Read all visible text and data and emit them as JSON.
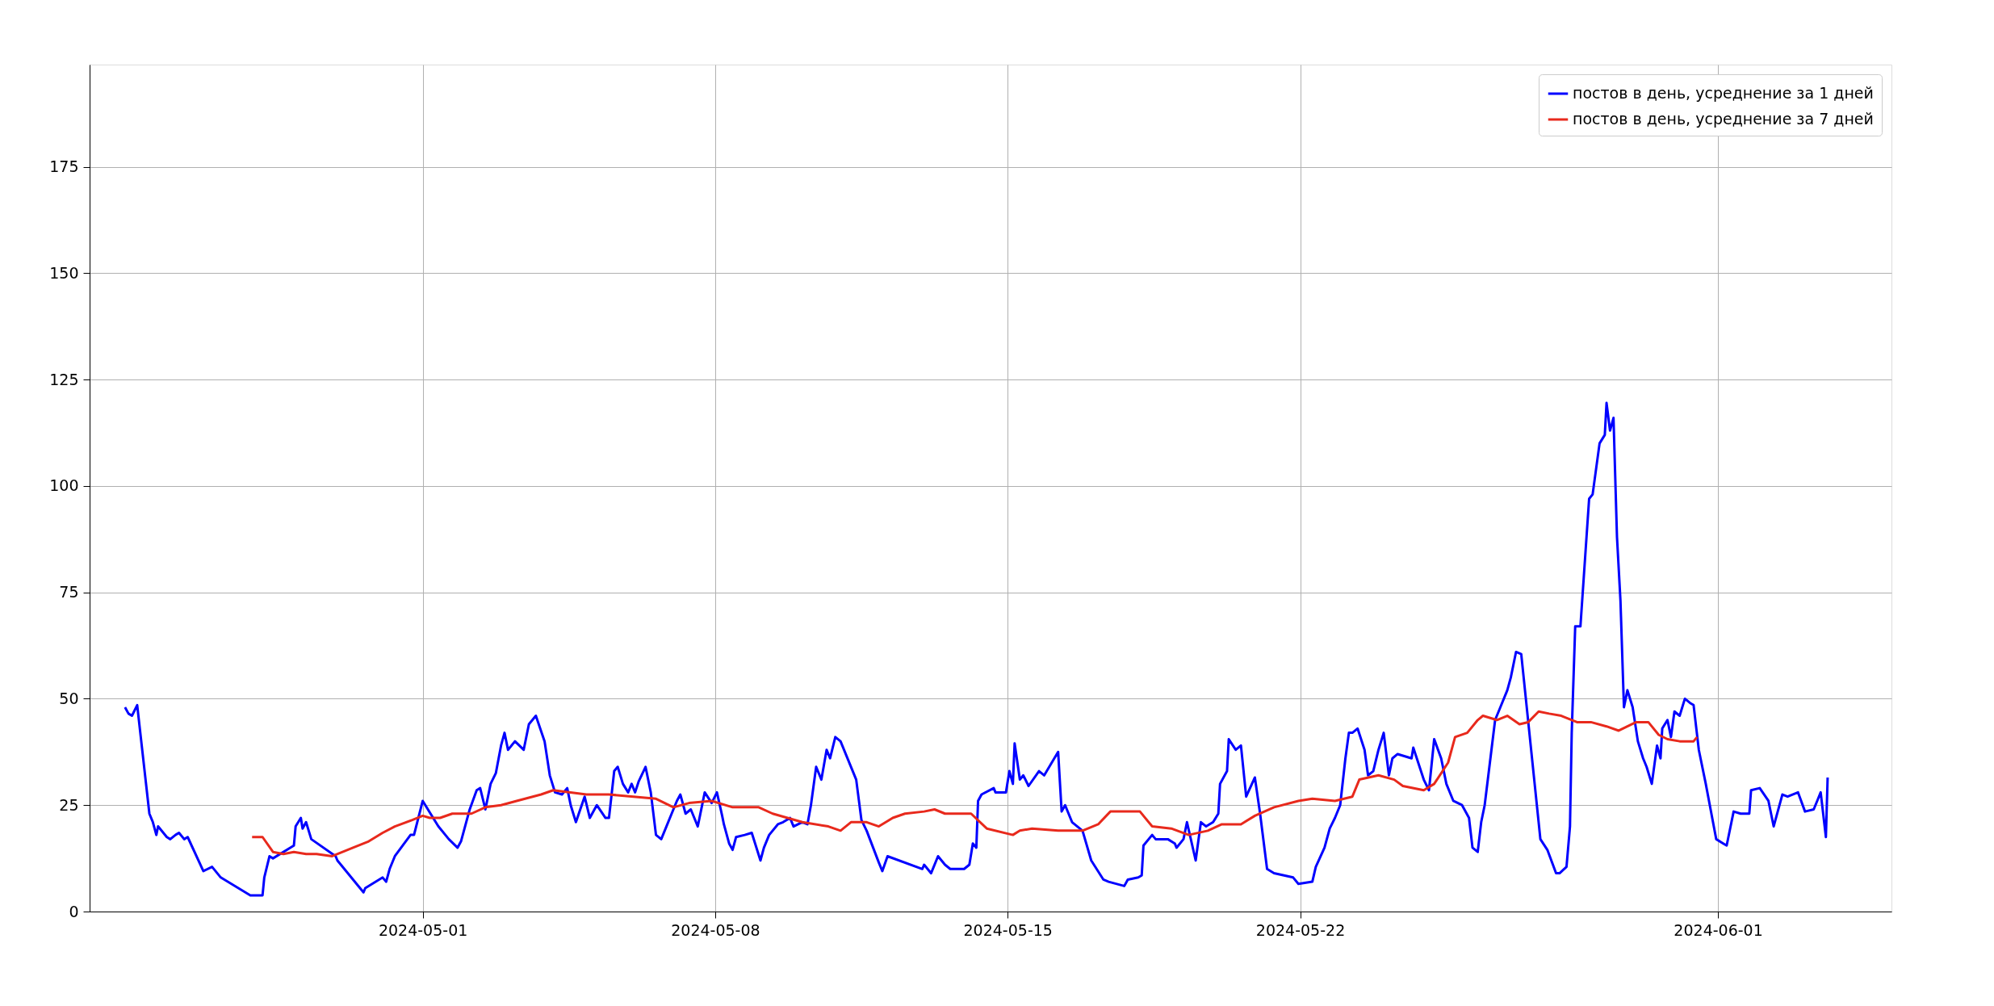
{
  "chart_data": {
    "type": "line",
    "xlim": [
      "2024-04-23T00:40",
      "2024-06-05T03:40"
    ],
    "ylim": [
      0,
      199
    ],
    "xticks": [
      "2024-05-01",
      "2024-05-08",
      "2024-05-15",
      "2024-05-22",
      "2024-06-01"
    ],
    "yticks": [
      0,
      25,
      50,
      75,
      100,
      125,
      150,
      175
    ],
    "grid": true,
    "legend": "top right",
    "line_style": "solid",
    "marker": "none",
    "series": [
      {
        "name": "постов в день, усреднение за 1 дней",
        "color": "#0000ff",
        "x": [
          "2024-04-23T21:00",
          "2024-04-23T23:00",
          "2024-04-24T01:00",
          "2024-04-24T04:00",
          "2024-04-24T11:00",
          "2024-04-24T13:00",
          "2024-04-24T15:00",
          "2024-04-24T16:00",
          "2024-04-24T21:00",
          "2024-04-24T23:00",
          "2024-04-25T02:00",
          "2024-04-25T04:00",
          "2024-04-25T07:00",
          "2024-04-25T09:00",
          "2024-04-25T18:00",
          "2024-04-25T23:00",
          "2024-04-26T04:00",
          "2024-04-26T21:00",
          "2024-04-27T04:00",
          "2024-04-27T05:00",
          "2024-04-27T08:00",
          "2024-04-27T10:00",
          "2024-04-27T22:00",
          "2024-04-27T23:00",
          "2024-04-28T02:00",
          "2024-04-28T03:00",
          "2024-04-28T05:00",
          "2024-04-28T08:00",
          "2024-04-28T22:00",
          "2024-04-28T23:00",
          "2024-04-29T14:00",
          "2024-04-29T15:00",
          "2024-04-30T01:00",
          "2024-04-30T03:00",
          "2024-04-30T05:00",
          "2024-04-30T08:00",
          "2024-04-30T17:00",
          "2024-04-30T19:00",
          "2024-05-01T00:00",
          "2024-05-01T09:00",
          "2024-05-01T15:00",
          "2024-05-01T20:00",
          "2024-05-01T22:00",
          "2024-05-02T03:00",
          "2024-05-02T07:00",
          "2024-05-02T09:00",
          "2024-05-02T12:00",
          "2024-05-02T15:00",
          "2024-05-02T18:00",
          "2024-05-02T21:00",
          "2024-05-02T23:00",
          "2024-05-03T01:00",
          "2024-05-03T05:00",
          "2024-05-03T10:00",
          "2024-05-03T13:00",
          "2024-05-03T17:00",
          "2024-05-03T22:00",
          "2024-05-04T01:00",
          "2024-05-04T04:00",
          "2024-05-04T08:00",
          "2024-05-04T11:00",
          "2024-05-04T13:00",
          "2024-05-04T16:00",
          "2024-05-04T21:00",
          "2024-05-05T00:00",
          "2024-05-05T04:00",
          "2024-05-05T09:00",
          "2024-05-05T11:00",
          "2024-05-05T14:00",
          "2024-05-05T16:00",
          "2024-05-05T19:00",
          "2024-05-05T22:00",
          "2024-05-06T00:00",
          "2024-05-06T02:00",
          "2024-05-06T04:00",
          "2024-05-06T08:00",
          "2024-05-06T11:00",
          "2024-05-06T14:00",
          "2024-05-06T17:00",
          "2024-05-06T20:00",
          "2024-05-07T00:00",
          "2024-05-07T02:00",
          "2024-05-07T04:00",
          "2024-05-07T07:00",
          "2024-05-07T10:00",
          "2024-05-07T14:00",
          "2024-05-07T18:00",
          "2024-05-07T22:00",
          "2024-05-08T01:00",
          "2024-05-08T04:00",
          "2024-05-08T05:00",
          "2024-05-08T08:00",
          "2024-05-08T10:00",
          "2024-05-08T12:00",
          "2024-05-08T17:00",
          "2024-05-08T21:00",
          "2024-05-09T02:00",
          "2024-05-09T04:00",
          "2024-05-09T07:00",
          "2024-05-09T12:00",
          "2024-05-09T15:00",
          "2024-05-09T19:00",
          "2024-05-09T21:00",
          "2024-05-10T02:00",
          "2024-05-10T05:00",
          "2024-05-10T07:00",
          "2024-05-10T10:00",
          "2024-05-10T13:00",
          "2024-05-10T16:00",
          "2024-05-10T18:00",
          "2024-05-10T21:00",
          "2024-05-11T00:00",
          "2024-05-11T09:00",
          "2024-05-11T12:00",
          "2024-05-11T15:00",
          "2024-05-11T22:00",
          "2024-05-12T00:00",
          "2024-05-12T03:00",
          "2024-05-12T23:00",
          "2024-05-13T00:00",
          "2024-05-13T04:00",
          "2024-05-13T08:00",
          "2024-05-13T12:00",
          "2024-05-13T15:00",
          "2024-05-13T23:00",
          "2024-05-14T02:00",
          "2024-05-14T04:00",
          "2024-05-14T06:00",
          "2024-05-14T07:00",
          "2024-05-14T09:00",
          "2024-05-14T16:00",
          "2024-05-14T17:00",
          "2024-05-14T23:00",
          "2024-05-15T01:00",
          "2024-05-15T03:00",
          "2024-05-15T04:00",
          "2024-05-15T07:00",
          "2024-05-15T09:00",
          "2024-05-15T12:00",
          "2024-05-15T18:00",
          "2024-05-15T21:00",
          "2024-05-16T05:00",
          "2024-05-16T07:00",
          "2024-05-16T09:00",
          "2024-05-16T13:00",
          "2024-05-16T19:00",
          "2024-05-17T00:00",
          "2024-05-17T07:00",
          "2024-05-17T10:00",
          "2024-05-17T19:00",
          "2024-05-17T21:00",
          "2024-05-18T03:00",
          "2024-05-18T05:00",
          "2024-05-18T06:00",
          "2024-05-18T11:00",
          "2024-05-18T13:00",
          "2024-05-18T20:00",
          "2024-05-19T00:00",
          "2024-05-19T01:00",
          "2024-05-19T05:00",
          "2024-05-19T07:00",
          "2024-05-19T12:00",
          "2024-05-19T15:00",
          "2024-05-19T18:00",
          "2024-05-19T22:00",
          "2024-05-20T01:00",
          "2024-05-20T02:00",
          "2024-05-20T06:00",
          "2024-05-20T07:00",
          "2024-05-20T11:00",
          "2024-05-20T14:00",
          "2024-05-20T17:00",
          "2024-05-20T22:00",
          "2024-05-21T01:00",
          "2024-05-21T05:00",
          "2024-05-21T09:00",
          "2024-05-21T20:00",
          "2024-05-21T23:00",
          "2024-05-22T07:00",
          "2024-05-22T09:00",
          "2024-05-22T14:00",
          "2024-05-22T17:00",
          "2024-05-22T20:00",
          "2024-05-22T23:00",
          "2024-05-23T02:00",
          "2024-05-23T04:00",
          "2024-05-23T06:00",
          "2024-05-23T09:00",
          "2024-05-23T13:00",
          "2024-05-23T15:00",
          "2024-05-23T18:00",
          "2024-05-23T21:00",
          "2024-05-24T00:00",
          "2024-05-24T03:00",
          "2024-05-24T05:00",
          "2024-05-24T08:00",
          "2024-05-24T16:00",
          "2024-05-24T17:00",
          "2024-05-24T23:00",
          "2024-05-25T02:00",
          "2024-05-25T05:00",
          "2024-05-25T09:00",
          "2024-05-25T12:00",
          "2024-05-25T16:00",
          "2024-05-25T21:00",
          "2024-05-26T01:00",
          "2024-05-26T03:00",
          "2024-05-26T06:00",
          "2024-05-26T08:00",
          "2024-05-26T10:00",
          "2024-05-26T13:00",
          "2024-05-26T16:00",
          "2024-05-26T19:00",
          "2024-05-26T23:00",
          "2024-05-27T01:00",
          "2024-05-27T04:00",
          "2024-05-27T07:00",
          "2024-05-27T18:00",
          "2024-05-27T22:00",
          "2024-05-28T03:00",
          "2024-05-28T05:00",
          "2024-05-28T09:00",
          "2024-05-28T11:00",
          "2024-05-28T12:00",
          "2024-05-28T14:00",
          "2024-05-28T17:00",
          "2024-05-28T20:00",
          "2024-05-28T22:00",
          "2024-05-29T00:00",
          "2024-05-29T04:00",
          "2024-05-29T07:00",
          "2024-05-29T08:00",
          "2024-05-29T10:00",
          "2024-05-29T12:00",
          "2024-05-29T14:00",
          "2024-05-29T16:00",
          "2024-05-29T18:00",
          "2024-05-29T20:00",
          "2024-05-29T23:00",
          "2024-05-30T02:00",
          "2024-05-30T05:00",
          "2024-05-30T07:00",
          "2024-05-30T10:00",
          "2024-05-30T13:00",
          "2024-05-30T15:00",
          "2024-05-30T16:00",
          "2024-05-30T19:00",
          "2024-05-30T21:00",
          "2024-05-30T23:00",
          "2024-05-31T02:00",
          "2024-05-31T05:00",
          "2024-05-31T08:00",
          "2024-05-31T10:00",
          "2024-05-31T13:00",
          "2024-05-31T17:00",
          "2024-05-31T23:00",
          "2024-06-01T03:00",
          "2024-06-01T05:00",
          "2024-06-01T09:00",
          "2024-06-01T13:00",
          "2024-06-01T18:00",
          "2024-06-01T19:00",
          "2024-06-02T00:00",
          "2024-06-02T05:00",
          "2024-06-02T08:00",
          "2024-06-02T13:00",
          "2024-06-02T16:00",
          "2024-06-02T22:00",
          "2024-06-03T02:00",
          "2024-06-03T07:00",
          "2024-06-03T09:00",
          "2024-06-03T11:00",
          "2024-06-03T14:00",
          "2024-06-03T15:00"
        ],
        "values": [
          48,
          46.5,
          46,
          48.5,
          23,
          21,
          18,
          20,
          17.5,
          17,
          18,
          18.5,
          17,
          17.5,
          9.5,
          10.5,
          8,
          3.8,
          3.8,
          8,
          13,
          12.5,
          15.5,
          20,
          22,
          19.5,
          21,
          17,
          13,
          12,
          4.5,
          5.5,
          8,
          7,
          10,
          13,
          18,
          18,
          26,
          20,
          17,
          15,
          16.5,
          24,
          28.5,
          29,
          24,
          30,
          32.5,
          39,
          42,
          38,
          40,
          38,
          44,
          46,
          40,
          32,
          28,
          27.5,
          29,
          25,
          21,
          27,
          22,
          25,
          22,
          22,
          33,
          34,
          30,
          28,
          30,
          28,
          30.5,
          34,
          28,
          18,
          17,
          20,
          24,
          26,
          27.5,
          23,
          24,
          20,
          28,
          25.5,
          28,
          22.5,
          20.5,
          16,
          14.5,
          17.5,
          18,
          18.5,
          12,
          15,
          18,
          20.5,
          21,
          22,
          20,
          21,
          20.5,
          25,
          34,
          31,
          38,
          36,
          41,
          40,
          31,
          21.5,
          19,
          11.5,
          9.5,
          13,
          10,
          11,
          9,
          13,
          11,
          10,
          10,
          11,
          16,
          15,
          26,
          27.5,
          29,
          28,
          28,
          33,
          30,
          39.5,
          31,
          32,
          29.5,
          33,
          32,
          37.5,
          23.5,
          25,
          21,
          19,
          12,
          7.5,
          7,
          6,
          7.5,
          8,
          8.5,
          15.5,
          18,
          17,
          17,
          16,
          15,
          17,
          21,
          12,
          21,
          20,
          21,
          23,
          30,
          33,
          40.5,
          38,
          39,
          27,
          31.5,
          23,
          10,
          9,
          8,
          6.5,
          7,
          10.5,
          15,
          19.5,
          22,
          25,
          36,
          42,
          42,
          43,
          38,
          32,
          33,
          38,
          42,
          32,
          36,
          37,
          36,
          38.5,
          31,
          28.5,
          40.5,
          36,
          30,
          26,
          25,
          22,
          15,
          14,
          21,
          25,
          35,
          45,
          48,
          52,
          55,
          61,
          60.5,
          17,
          14.5,
          9,
          9,
          10.5,
          20,
          42,
          67,
          67,
          85,
          97,
          98,
          110,
          112,
          119.5,
          113,
          116,
          88,
          73,
          48,
          52,
          48,
          40,
          36,
          34,
          30,
          39,
          36,
          43,
          45,
          41,
          47,
          46,
          50,
          49,
          48.5,
          38,
          30,
          17,
          16,
          15.5,
          23.5,
          23,
          23,
          28.5,
          29,
          26,
          20,
          27.5,
          27,
          28,
          23.5,
          24,
          26,
          28,
          17.5,
          31.5
        ]
      },
      {
        "name": "постов в день, усреднение за 7 дней",
        "color": "#e8291c",
        "x": [
          "2024-04-26T22:00",
          "2024-04-27T04:00",
          "2024-04-27T10:00",
          "2024-04-27T16:00",
          "2024-04-27T22:00",
          "2024-04-28T05:00",
          "2024-04-28T11:00",
          "2024-04-28T20:00",
          "2024-04-29T08:00",
          "2024-04-29T17:00",
          "2024-04-30T01:00",
          "2024-04-30T08:00",
          "2024-04-30T18:00",
          "2024-05-01T00:00",
          "2024-05-01T04:00",
          "2024-05-01T10:00",
          "2024-05-01T17:00",
          "2024-05-02T04:00",
          "2024-05-02T12:00",
          "2024-05-02T21:00",
          "2024-05-03T06:00",
          "2024-05-03T20:00",
          "2024-05-04T03:00",
          "2024-05-04T22:00",
          "2024-05-05T11:00",
          "2024-05-06T01:00",
          "2024-05-06T14:00",
          "2024-05-07T00:00",
          "2024-05-07T09:00",
          "2024-05-07T22:00",
          "2024-05-08T10:00",
          "2024-05-09T01:00",
          "2024-05-09T09:00",
          "2024-05-10T02:00",
          "2024-05-10T17:00",
          "2024-05-11T00:00",
          "2024-05-11T06:00",
          "2024-05-11T15:00",
          "2024-05-11T22:00",
          "2024-05-12T06:00",
          "2024-05-12T13:00",
          "2024-05-13T00:00",
          "2024-05-13T06:00",
          "2024-05-13T12:00",
          "2024-05-14T03:00",
          "2024-05-14T12:00",
          "2024-05-15T03:00",
          "2024-05-15T07:00",
          "2024-05-15T14:00",
          "2024-05-16T05:00",
          "2024-05-16T19:00",
          "2024-05-17T04:00",
          "2024-05-17T11:00",
          "2024-05-18T04:00",
          "2024-05-18T11:00",
          "2024-05-18T22:00",
          "2024-05-19T08:00",
          "2024-05-19T19:00",
          "2024-05-20T03:00",
          "2024-05-20T14:00",
          "2024-05-20T22:00",
          "2024-05-21T09:00",
          "2024-05-21T23:00",
          "2024-05-22T07:00",
          "2024-05-22T20:00",
          "2024-05-23T06:00",
          "2024-05-23T10:00",
          "2024-05-23T21:00",
          "2024-05-24T06:00",
          "2024-05-24T11:00",
          "2024-05-24T23:00",
          "2024-05-25T05:00",
          "2024-05-25T13:00",
          "2024-05-25T17:00",
          "2024-05-26T00:00",
          "2024-05-26T06:00",
          "2024-05-26T09:00",
          "2024-05-26T17:00",
          "2024-05-26T23:00",
          "2024-05-27T06:00",
          "2024-05-27T11:00",
          "2024-05-27T17:00",
          "2024-05-27T23:00",
          "2024-05-28T06:00",
          "2024-05-28T15:00",
          "2024-05-28T23:00",
          "2024-05-29T08:00",
          "2024-05-29T15:00",
          "2024-05-30T01:00",
          "2024-05-30T08:00",
          "2024-05-30T14:00",
          "2024-05-30T19:00",
          "2024-05-31T02:00",
          "2024-05-31T10:00",
          "2024-05-31T12:00"
        ],
        "values": [
          17.5,
          17.5,
          14,
          13.5,
          14,
          13.5,
          13.5,
          13,
          15,
          16.5,
          18.5,
          20,
          21.5,
          22.5,
          22,
          22,
          23,
          23,
          24.5,
          25,
          26,
          27.5,
          28.5,
          27.5,
          27.5,
          27,
          26.5,
          24.5,
          25.5,
          26,
          24.5,
          24.5,
          23,
          21,
          20,
          19,
          21,
          21,
          20,
          22,
          23,
          23.5,
          24,
          23,
          23,
          19.5,
          18,
          19,
          19.5,
          19,
          19,
          20.5,
          23.5,
          23.5,
          20,
          19.5,
          18,
          19,
          20.5,
          20.5,
          22.5,
          24.5,
          26,
          26.5,
          26,
          27,
          31,
          32,
          31,
          29.5,
          28.5,
          30,
          35,
          41,
          42,
          45,
          46,
          45,
          46,
          44,
          44.5,
          47,
          46.5,
          46,
          44.5,
          44.5,
          43.5,
          42.5,
          44.5,
          44.5,
          41.5,
          40.5,
          40,
          40,
          41
        ]
      }
    ]
  }
}
